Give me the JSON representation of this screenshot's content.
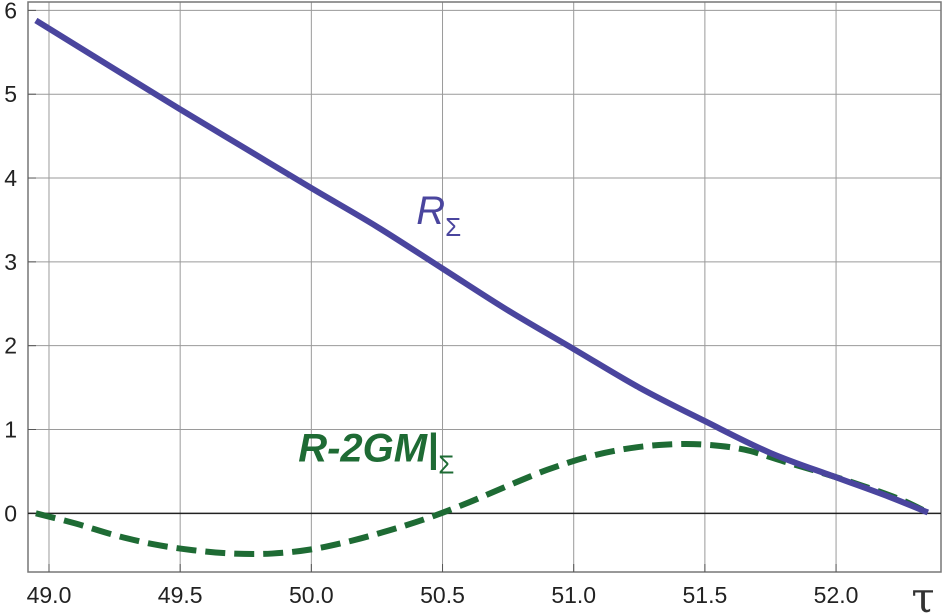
{
  "chart_data": {
    "type": "line",
    "xlabel": "τ",
    "ylabel": "",
    "xlim": [
      48.92,
      52.4
    ],
    "ylim": [
      -0.7,
      6.1
    ],
    "xticks": [
      49.0,
      49.5,
      50.0,
      50.5,
      51.0,
      51.5,
      52.0
    ],
    "xtick_labels": [
      "49.0",
      "49.5",
      "50.0",
      "50.5",
      "51.0",
      "51.5",
      "52.0"
    ],
    "yticks": [
      0,
      1,
      2,
      3,
      4,
      5,
      6
    ],
    "ytick_labels": [
      "0",
      "1",
      "2",
      "3",
      "4",
      "5",
      "6"
    ],
    "grid": true,
    "legend": "none",
    "series": [
      {
        "name": "R_Σ",
        "label_main": "R",
        "label_sub": "Σ",
        "color": "#4a459e",
        "style": "solid",
        "x": [
          48.95,
          49.25,
          49.5,
          49.75,
          50.0,
          50.25,
          50.5,
          50.75,
          51.0,
          51.25,
          51.5,
          51.75,
          52.0,
          52.2,
          52.35
        ],
        "y": [
          5.88,
          5.3,
          4.82,
          4.35,
          3.88,
          3.42,
          2.92,
          2.42,
          1.96,
          1.5,
          1.1,
          0.72,
          0.43,
          0.2,
          0.01
        ]
      },
      {
        "name": "R-2GM|_Σ",
        "label_main": "R-2GM|",
        "label_sub": "Σ",
        "color": "#1e6b34",
        "style": "dashed",
        "x": [
          48.95,
          49.1,
          49.25,
          49.4,
          49.55,
          49.7,
          49.85,
          50.0,
          50.15,
          50.3,
          50.45,
          50.6,
          50.75,
          50.9,
          51.05,
          51.2,
          51.35,
          51.5,
          51.65,
          51.8,
          51.95,
          52.1,
          52.25,
          52.35
        ],
        "y": [
          0.0,
          -0.12,
          -0.26,
          -0.37,
          -0.44,
          -0.48,
          -0.48,
          -0.43,
          -0.33,
          -0.2,
          -0.05,
          0.13,
          0.33,
          0.52,
          0.67,
          0.77,
          0.82,
          0.82,
          0.76,
          0.62,
          0.48,
          0.33,
          0.16,
          0.01
        ]
      }
    ],
    "annotations": [
      {
        "text_main": "R",
        "text_sub": "Σ",
        "x": 50.4,
        "y": 3.45,
        "color": "#4a459e"
      },
      {
        "text_main": "R-2GM|",
        "text_sub": "Σ",
        "x": 49.95,
        "y": 0.62,
        "color": "#1e6b34"
      }
    ]
  }
}
